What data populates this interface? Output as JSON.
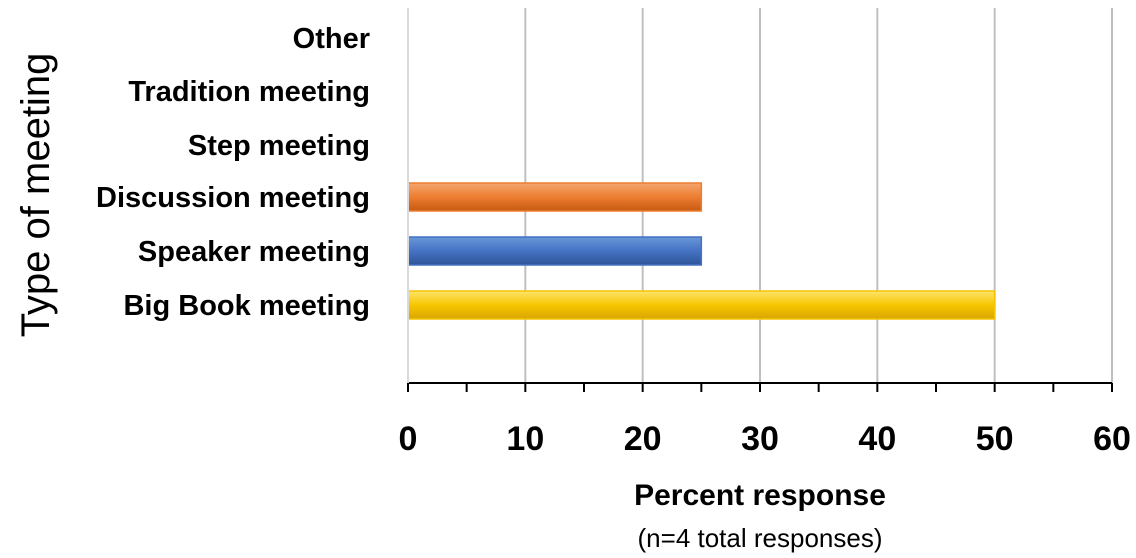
{
  "chart_data": {
    "type": "bar",
    "orientation": "horizontal",
    "categories": [
      "Big Book meeting",
      "Speaker meeting",
      "Discussion meeting",
      "Step meeting",
      "Tradition meeting",
      "Other"
    ],
    "values": [
      50,
      25,
      25,
      0,
      0,
      0
    ],
    "colors": [
      "#f5c400",
      "#4472c4",
      "#ed7d31",
      "#a5a5a5",
      "#a5a5a5",
      "#a5a5a5"
    ],
    "xlabel": "Percent response",
    "xlabel_sub": "(n=4 total responses)",
    "ylabel": "Type of meeting",
    "xlim": [
      0,
      60
    ],
    "xticks": [
      0,
      10,
      20,
      30,
      40,
      50,
      60
    ],
    "grid": true
  }
}
